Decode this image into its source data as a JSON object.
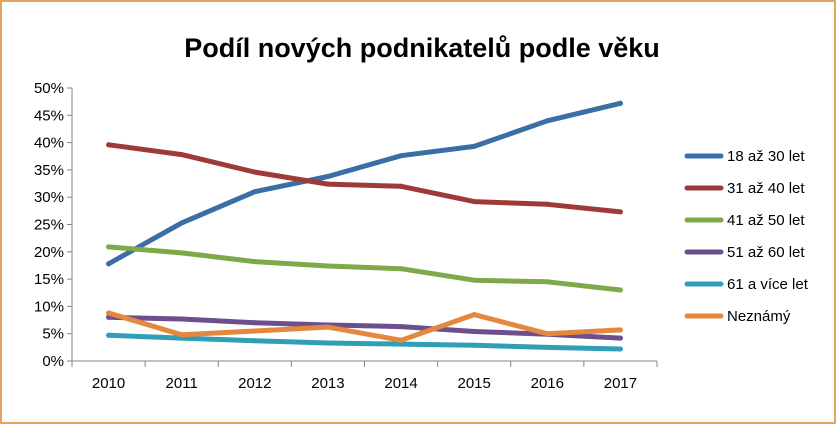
{
  "chart_data": {
    "type": "line",
    "title": "Podíl nových podnikatelů podle věku",
    "xlabel": "",
    "ylabel": "",
    "x": [
      "2010",
      "2011",
      "2012",
      "2013",
      "2014",
      "2015",
      "2016",
      "2017"
    ],
    "y_ticks": [
      "0%",
      "5%",
      "10%",
      "15%",
      "20%",
      "25%",
      "30%",
      "35%",
      "40%",
      "45%",
      "50%"
    ],
    "ylim": [
      0,
      50
    ],
    "grid": false,
    "legend_position": "right",
    "series": [
      {
        "name": "18 až 30 let",
        "color": "#3b6ea5",
        "values": [
          17.8,
          25.3,
          31.0,
          33.8,
          37.6,
          39.3,
          44.0,
          47.2
        ]
      },
      {
        "name": "31 až 40 let",
        "color": "#9e3a38",
        "values": [
          39.6,
          37.8,
          34.6,
          32.4,
          32.0,
          29.2,
          28.7,
          27.3
        ]
      },
      {
        "name": "41 až 50 let",
        "color": "#7fa84a",
        "values": [
          20.9,
          19.8,
          18.2,
          17.4,
          16.9,
          14.8,
          14.5,
          13.0
        ]
      },
      {
        "name": "51 až 60 let",
        "color": "#6d4f8e",
        "values": [
          8.0,
          7.7,
          7.0,
          6.6,
          6.3,
          5.4,
          4.9,
          4.2
        ]
      },
      {
        "name": "61 a více let",
        "color": "#2f9fb8",
        "values": [
          4.7,
          4.2,
          3.7,
          3.3,
          3.1,
          2.9,
          2.5,
          2.2
        ]
      },
      {
        "name": "Neznámý",
        "color": "#e5883f",
        "values": [
          8.8,
          4.8,
          5.5,
          6.2,
          3.8,
          8.5,
          5.0,
          5.7
        ]
      }
    ]
  }
}
